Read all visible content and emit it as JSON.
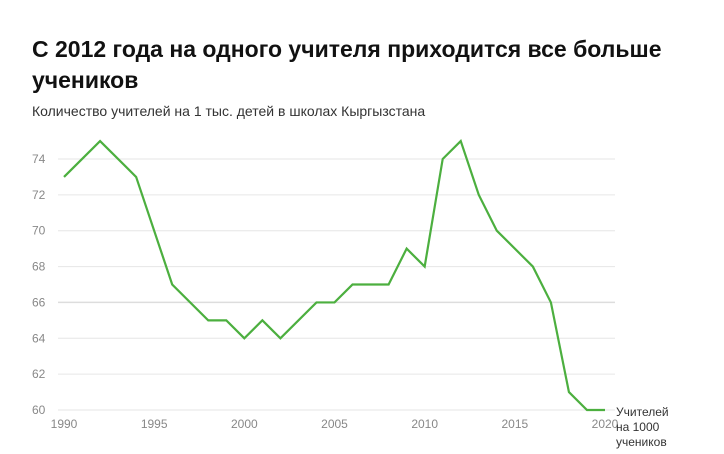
{
  "chart_data": {
    "type": "line",
    "title": "С 2012 года на одного учителя приходится все больше учеников",
    "subtitle": "Количество учителей на 1 тыс. детей в школах Кыргызстана",
    "xlabel": "",
    "ylabel": "",
    "xlim": [
      1990,
      2020
    ],
    "ylim": [
      60,
      75
    ],
    "grid": true,
    "yticks": [
      60,
      62,
      64,
      66,
      68,
      70,
      72,
      74
    ],
    "xticks": [
      1990,
      1995,
      2000,
      2005,
      2010,
      2015,
      2020
    ],
    "series": [
      {
        "name": "Учителей на 1000 учеников",
        "name_lines": [
          "Учителей",
          "на 1000",
          "учеников"
        ],
        "color": "#4caf3f",
        "x": [
          1990,
          1992,
          1994,
          1996,
          1998,
          1999,
          2000,
          2001,
          2002,
          2004,
          2005,
          2006,
          2008,
          2009,
          2010,
          2011,
          2012,
          2013,
          2014,
          2016,
          2017,
          2018,
          2019,
          2020
        ],
        "y": [
          73,
          75,
          73,
          67,
          65,
          65,
          64,
          65,
          64,
          66,
          66,
          67,
          67,
          69,
          68,
          74,
          75,
          72,
          70,
          68,
          66,
          61,
          60,
          60
        ]
      }
    ]
  }
}
